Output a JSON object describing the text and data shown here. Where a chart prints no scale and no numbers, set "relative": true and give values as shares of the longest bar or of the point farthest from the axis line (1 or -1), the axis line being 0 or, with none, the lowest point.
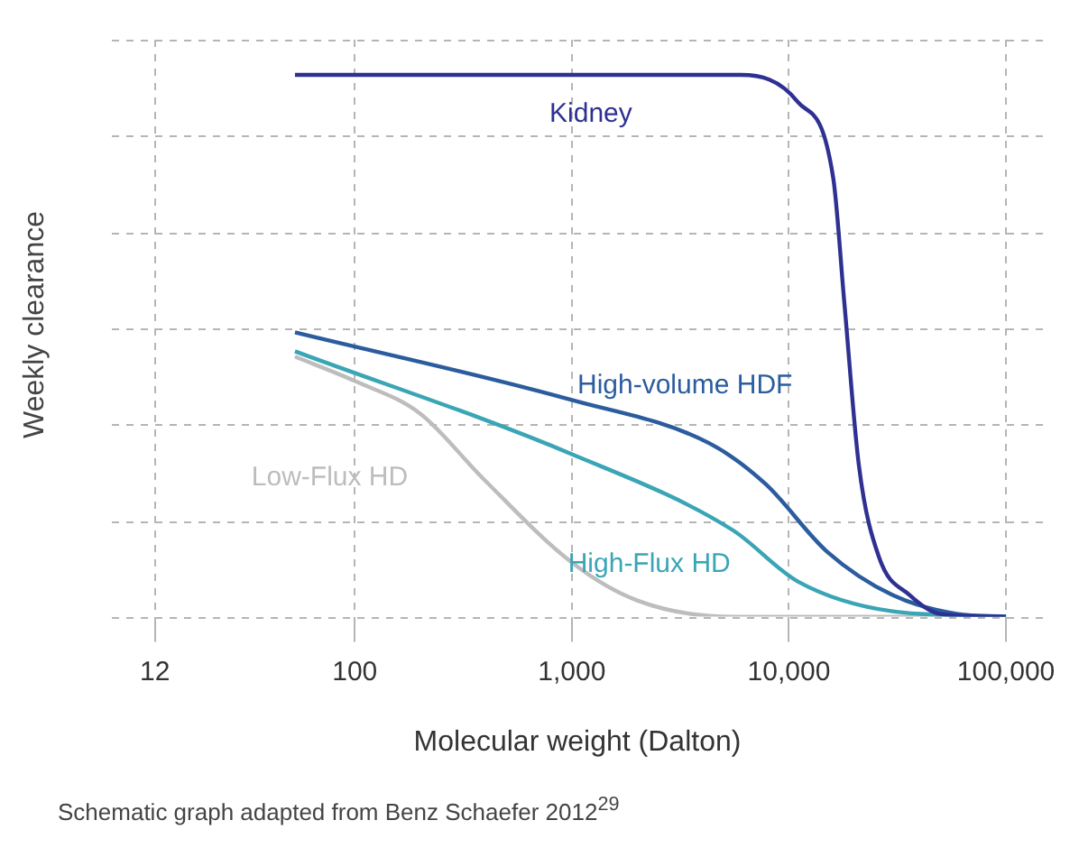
{
  "chart_data": {
    "type": "line",
    "relative": true,
    "xlabel": "Molecular weight (Dalton)",
    "ylabel": "Weekly clearance",
    "log": "x",
    "grid": true,
    "marker": "none",
    "line_style": "solid",
    "legend": false,
    "xlim": [
      7.6,
      148000
    ],
    "xticks": [
      12,
      100,
      {
        "value": 1000,
        "label": "1,000"
      },
      {
        "value": 10000,
        "label": "10,000"
      },
      {
        "value": 100000,
        "label": "100,000"
      }
    ],
    "annotations": [
      "Schematic graph adapted from Benz Schaefer 2012$^{29}$"
    ],
    "series": [
      {
        "name": "Kidney",
        "color": "#2e3192",
        "x": [
          53,
          6000,
          11000,
          16000,
          18000,
          21000,
          26000,
          36000,
          50000,
          100000
        ],
        "values": [
          1,
          1,
          0.95,
          0.81,
          0.58,
          0.28,
          0.11,
          0.04,
          0.005,
          0
        ]
      },
      {
        "name": "High-volume HDF",
        "color": "#2b5c9e",
        "x": [
          53,
          1000,
          4300,
          7800,
          15000,
          30000,
          60000,
          100000
        ],
        "values": [
          0.525,
          0.4,
          0.32,
          0.245,
          0.12,
          0.04,
          0.005,
          0
        ]
      },
      {
        "name": "High-Flux HD",
        "color": "#3aa5b5",
        "x": [
          53,
          1000,
          5500,
          11000,
          30000,
          100000
        ],
        "values": [
          0.49,
          0.3,
          0.16,
          0.065,
          0.01,
          0
        ]
      },
      {
        "name": "Low-Flux HD",
        "color": "#bdbdbd",
        "x": [
          53,
          100,
          200,
          390,
          1000,
          2000,
          5500,
          100000
        ],
        "values": [
          0.48,
          0.435,
          0.375,
          0.255,
          0.1,
          0.03,
          0,
          0
        ]
      }
    ]
  }
}
